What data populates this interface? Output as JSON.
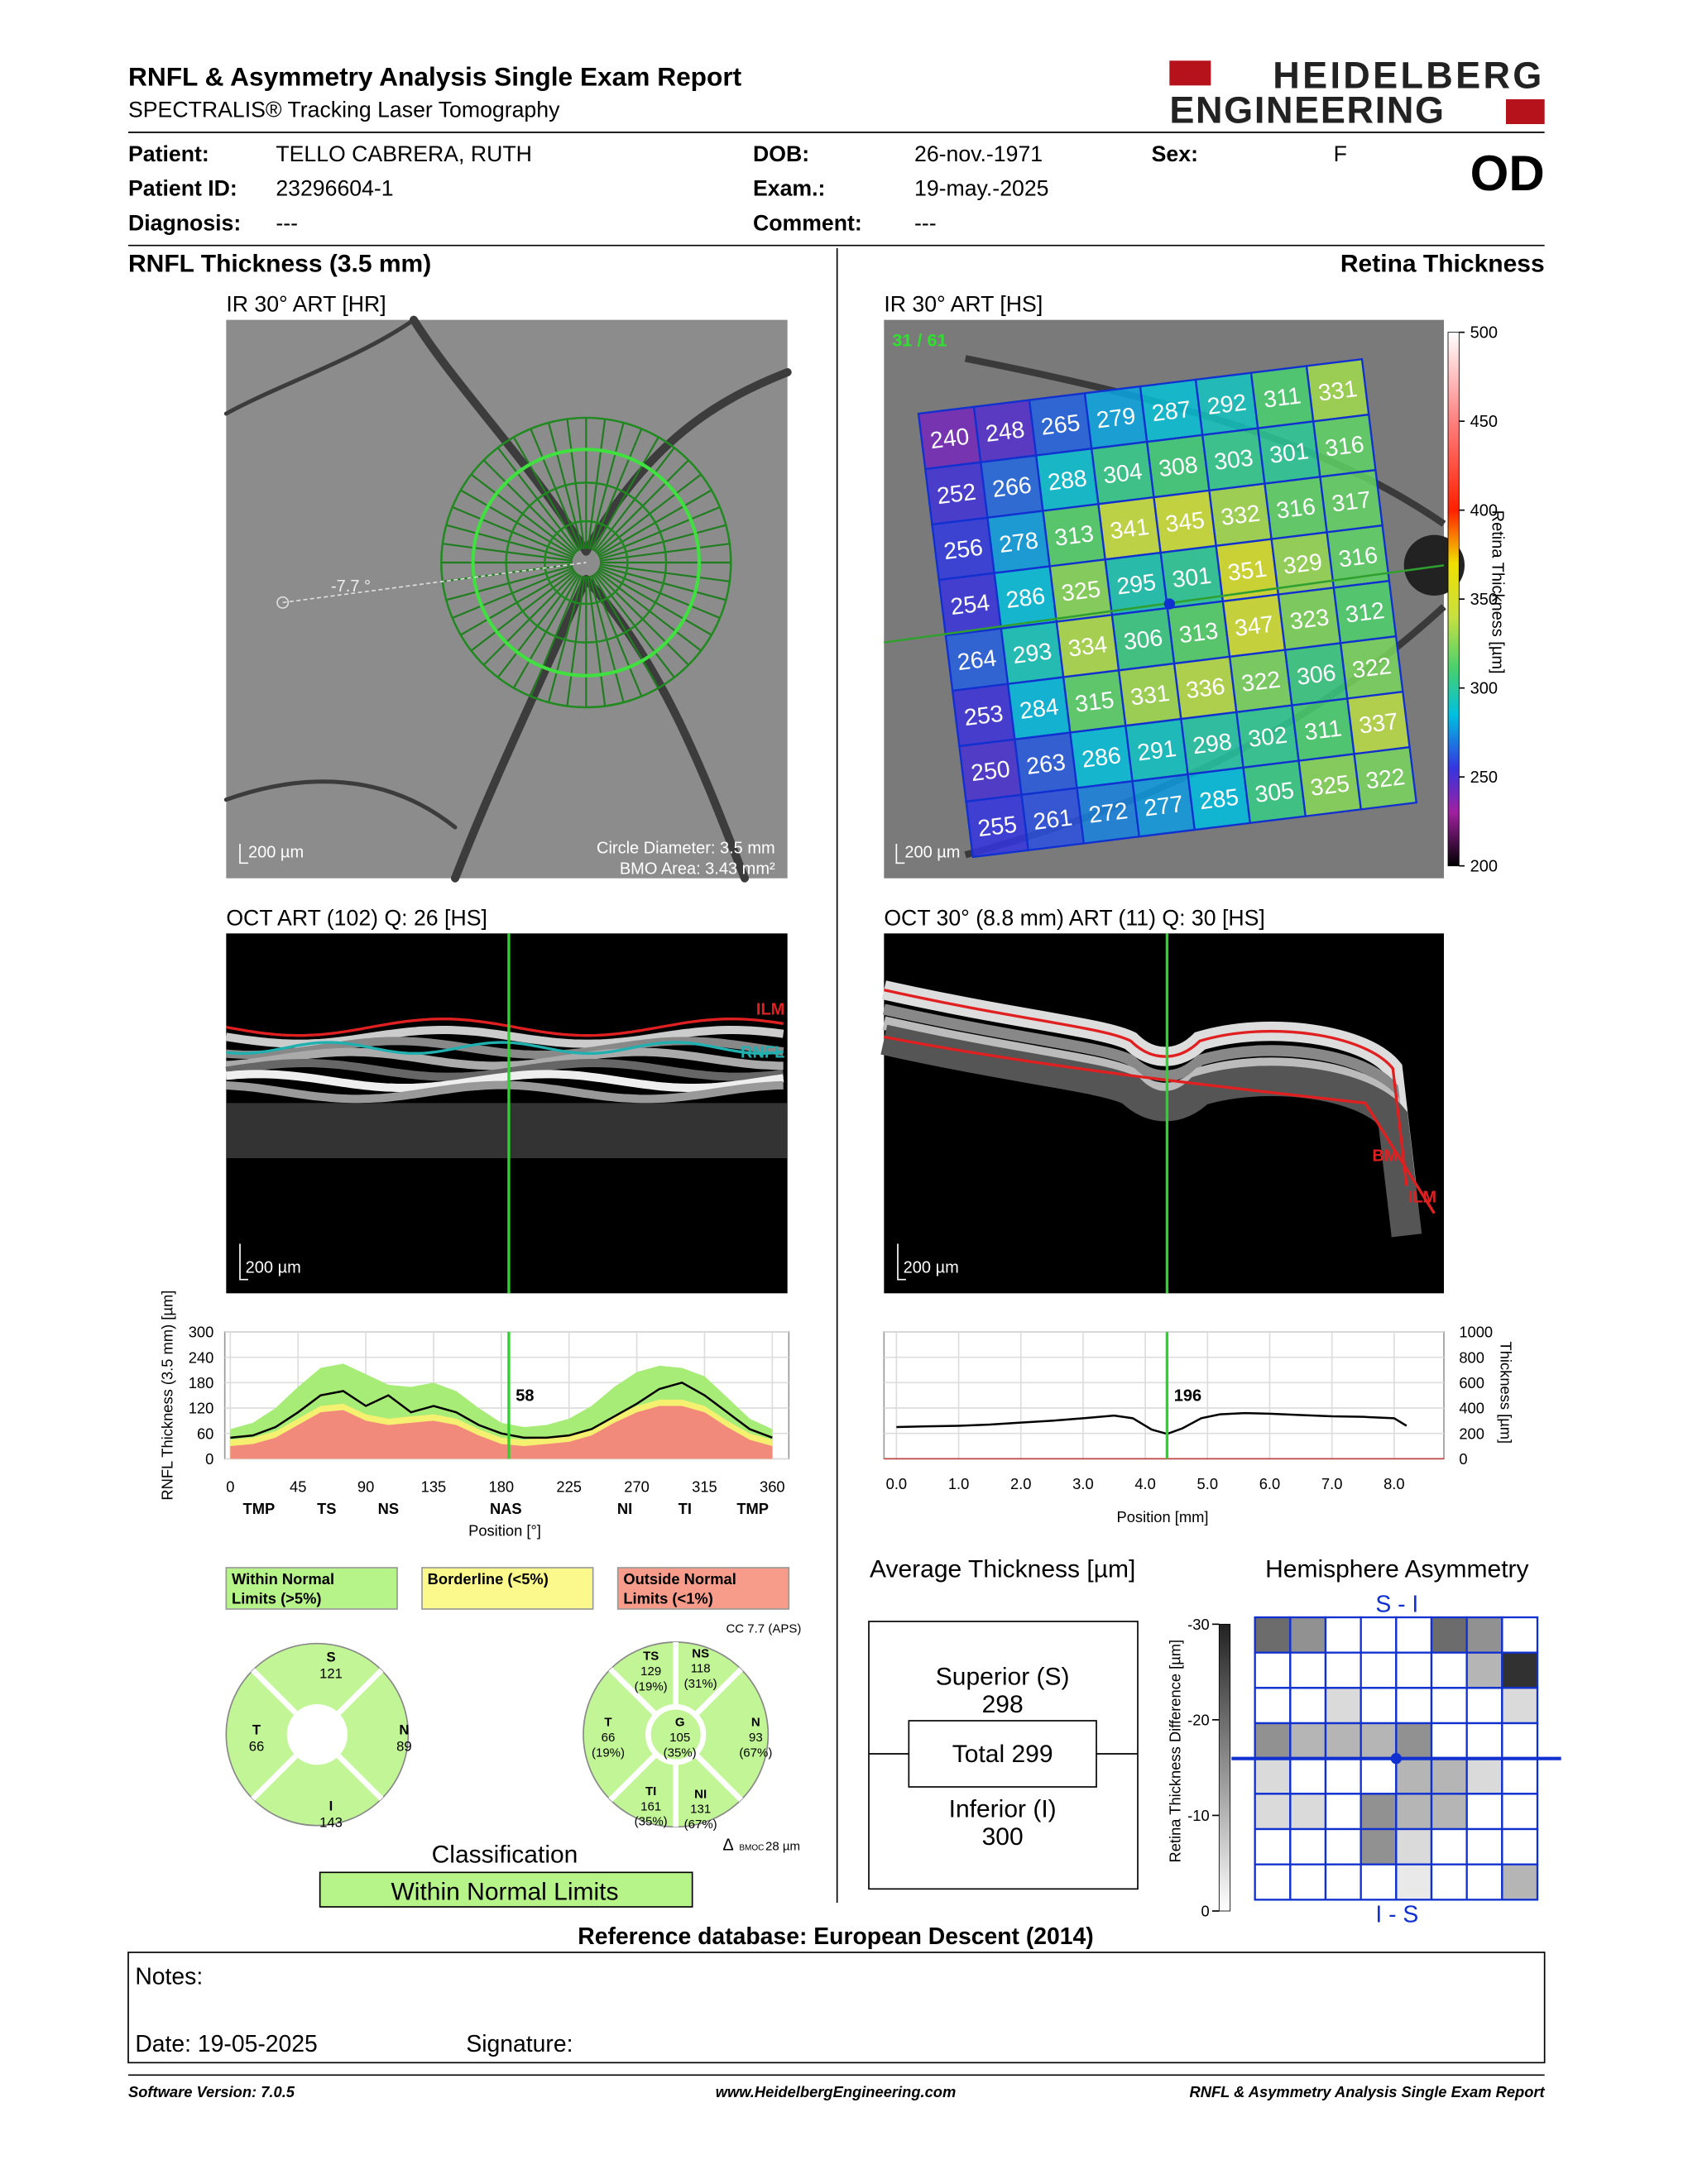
{
  "header": {
    "title": "RNFL & Asymmetry Analysis Single Exam Report",
    "subtitle": "SPECTRALIS® Tracking Laser Tomography",
    "logo": [
      "HEIDELBERG",
      "ENGINEERING"
    ]
  },
  "patient": [
    {
      "label": "Patient:",
      "value": "TELLO CABRERA, RUTH"
    },
    {
      "label": "Patient ID:",
      "value": "23296604-1"
    },
    {
      "label": "Diagnosis:",
      "value": "---"
    },
    {
      "label": "DOB:",
      "value": "26-nov.-1971"
    },
    {
      "label": "Exam.:",
      "value": "19-may.-2025"
    },
    {
      "label": "Comment:",
      "value": "---"
    },
    {
      "label": "Sex:",
      "value": "F"
    }
  ],
  "eye": "OD",
  "rnfl": {
    "section_title": "RNFL Thickness (3.5 mm)",
    "fundus": {
      "label": "IR 30° ART [HR]",
      "angle": "-7.7 °",
      "scale": "200 µm",
      "circle_diameter": "Circle Diameter: 3.5 mm",
      "bmo_area": "BMO Area: 3.43 mm²"
    },
    "oct": {
      "label": "OCT ART (102) Q: 26 [HS]",
      "scale": "200 µm",
      "layers": [
        "ILM",
        "RNFL"
      ]
    },
    "chart": {
      "type": "line",
      "y_label": "RNFL Thickness (3.5 mm) [µm]",
      "x_label": "Position [°]",
      "xlim": [
        0,
        360
      ],
      "xticks": [
        0,
        45,
        90,
        135,
        180,
        225,
        270,
        315,
        360
      ],
      "ylim": [
        0,
        300
      ],
      "yticks": [
        0,
        60,
        120,
        180,
        240,
        300
      ],
      "grid": true,
      "regions": [
        {
          "label": "TMP",
          "at": 19
        },
        {
          "label": "TS",
          "at": 64
        },
        {
          "label": "NS",
          "at": 105
        },
        {
          "label": "NAS",
          "at": 183
        },
        {
          "label": "NI",
          "at": 262
        },
        {
          "label": "TI",
          "at": 302
        },
        {
          "label": "TMP",
          "at": 347
        }
      ],
      "x": [
        0,
        15,
        30,
        45,
        60,
        75,
        90,
        105,
        120,
        135,
        150,
        165,
        180,
        195,
        210,
        225,
        240,
        255,
        270,
        285,
        300,
        315,
        330,
        345,
        360
      ],
      "bands": [
        {
          "color": "#a8ec78",
          "values": [
            70,
            85,
            120,
            170,
            215,
            225,
            200,
            175,
            170,
            180,
            160,
            120,
            85,
            75,
            80,
            95,
            125,
            170,
            205,
            220,
            215,
            195,
            145,
            95,
            70
          ]
        },
        {
          "color": "#f6f070",
          "values": [
            45,
            50,
            65,
            95,
            125,
            130,
            105,
            95,
            100,
            105,
            95,
            70,
            50,
            45,
            50,
            55,
            70,
            100,
            125,
            140,
            140,
            125,
            90,
            60,
            45
          ]
        },
        {
          "color": "#f28a7c",
          "values": [
            30,
            35,
            50,
            80,
            110,
            115,
            90,
            80,
            85,
            90,
            80,
            55,
            35,
            30,
            35,
            40,
            55,
            85,
            110,
            125,
            125,
            110,
            75,
            45,
            30
          ]
        }
      ],
      "measured": {
        "color": "#000000",
        "values": [
          50,
          55,
          75,
          110,
          150,
          160,
          125,
          150,
          110,
          125,
          110,
          80,
          60,
          50,
          50,
          55,
          70,
          100,
          130,
          165,
          180,
          150,
          110,
          70,
          50
        ]
      },
      "cursor": {
        "x": 185,
        "value": 58
      }
    },
    "legend": [
      {
        "lines": [
          "Within Normal",
          "Limits (>5%)"
        ],
        "color": "#b6f48a"
      },
      {
        "lines": [
          "Borderline (<5%)"
        ],
        "color": "#fbf98b"
      },
      {
        "lines": [
          "Outside Normal",
          "Limits (<1%)"
        ],
        "color": "#f79b8b"
      }
    ],
    "sectors": {
      "cc": "CC 7.7 (APS)",
      "bmoc": [
        "Δ",
        "BMOC",
        "28 µm"
      ],
      "global": [
        {
          "label": "S",
          "value": 121
        },
        {
          "label": "T",
          "value": 66
        },
        {
          "label": "N",
          "value": 89
        },
        {
          "label": "I",
          "value": 143
        }
      ],
      "detail": [
        {
          "label": "TS",
          "value": 129,
          "percent": "(19%)"
        },
        {
          "label": "NS",
          "value": 118,
          "percent": "(31%)"
        },
        {
          "label": "T",
          "value": 66,
          "percent": "(19%)"
        },
        {
          "label": "G",
          "value": 105,
          "percent": "(35%)"
        },
        {
          "label": "N",
          "value": 93,
          "percent": "(67%)"
        },
        {
          "label": "TI",
          "value": 161,
          "percent": "(35%)"
        },
        {
          "label": "NI",
          "value": 131,
          "percent": "(67%)"
        }
      ]
    },
    "classification": {
      "title": "Classification",
      "result": "Within Normal Limits"
    }
  },
  "retina": {
    "section_title": "Retina Thickness",
    "fundus": {
      "label": "IR 30° ART [HS]",
      "scan": "31 / 61",
      "scale": "200 µm",
      "grid": [
        [
          240,
          248,
          265,
          279,
          287,
          292,
          311,
          331
        ],
        [
          252,
          266,
          288,
          304,
          308,
          303,
          301,
          316
        ],
        [
          256,
          278,
          313,
          341,
          345,
          332,
          316,
          317
        ],
        [
          254,
          286,
          325,
          295,
          301,
          351,
          329,
          316
        ],
        [
          264,
          293,
          334,
          306,
          313,
          347,
          323,
          312
        ],
        [
          253,
          284,
          315,
          331,
          336,
          322,
          306,
          322
        ],
        [
          250,
          263,
          286,
          291,
          298,
          302,
          311,
          337
        ],
        [
          255,
          261,
          272,
          277,
          285,
          305,
          325,
          322
        ]
      ],
      "colorbar": {
        "label": "Retina Thickness [µm]",
        "lim": [
          200,
          500
        ],
        "ticks": [
          200,
          250,
          300,
          350,
          400,
          450,
          500
        ]
      }
    },
    "oct": {
      "label": "OCT 30° (8.8 mm) ART (11) Q: 30 [HS]",
      "scale": "200 µm",
      "layers": [
        "BM",
        "ILM"
      ]
    },
    "chart": {
      "type": "line",
      "x_label": "Position [mm]",
      "y_label": "Thickness [µm]",
      "xlim": [
        -0.2,
        8.8
      ],
      "xticks": [
        {
          "value": 0,
          "label": "0.0"
        },
        {
          "value": 1,
          "label": "1.0"
        },
        {
          "value": 2,
          "label": "2.0"
        },
        {
          "value": 3,
          "label": "3.0"
        },
        {
          "value": 4,
          "label": "4.0"
        },
        {
          "value": 5,
          "label": "5.0"
        },
        {
          "value": 6,
          "label": "6.0"
        },
        {
          "value": 7,
          "label": "7.0"
        },
        {
          "value": 8,
          "label": "8.0"
        }
      ],
      "ylim": [
        0,
        1000
      ],
      "yticks": [
        0,
        200,
        400,
        600,
        800,
        1000
      ],
      "grid": true,
      "color": "#000000",
      "x": [
        0,
        0.5,
        1,
        1.5,
        2,
        2.5,
        3,
        3.5,
        3.8,
        4.1,
        4.35,
        4.6,
        4.9,
        5.2,
        5.6,
        6,
        6.5,
        7,
        7.5,
        8,
        8.2
      ],
      "values": [
        250,
        255,
        260,
        270,
        285,
        300,
        320,
        340,
        320,
        230,
        196,
        240,
        320,
        350,
        360,
        355,
        345,
        335,
        330,
        320,
        260
      ],
      "cursor": {
        "x": 4.35,
        "value": 196
      }
    },
    "average": {
      "title": "Average Thickness [µm]",
      "superior_label": "Superior (S)",
      "superior": 298,
      "total_label": "Total",
      "total": 299,
      "inferior_label": "Inferior (I)",
      "inferior": 300
    },
    "asymmetry": {
      "title": "Hemisphere Asymmetry",
      "top": "S - I",
      "bottom": "I - S",
      "colorbar": {
        "label": "Retina Thickness Difference [µm]",
        "lim": [
          0,
          -30
        ],
        "ticks": [
          0,
          -10,
          -20,
          -30
        ]
      },
      "grid": [
        [
          -20,
          -15,
          0,
          0,
          0,
          -20,
          -15,
          0
        ],
        [
          0,
          0,
          0,
          0,
          0,
          0,
          -10,
          -28
        ],
        [
          0,
          0,
          -5,
          0,
          0,
          0,
          0,
          -5
        ],
        [
          -15,
          -10,
          -10,
          -10,
          -15,
          0,
          0,
          0
        ],
        [
          -5,
          0,
          0,
          0,
          -10,
          -10,
          -5,
          0
        ],
        [
          -5,
          -5,
          0,
          -15,
          -10,
          -10,
          0,
          0
        ],
        [
          0,
          0,
          0,
          -15,
          -5,
          0,
          0,
          0
        ],
        [
          0,
          0,
          0,
          0,
          -3,
          0,
          0,
          -10
        ]
      ]
    }
  },
  "reference": "Reference database: European Descent (2014)",
  "notes": {
    "label": "Notes:",
    "date": "Date: 19-05-2025",
    "signature": "Signature:"
  },
  "footer": [
    "Software Version: 7.0.5",
    "www.HeidelbergEngineering.com",
    "RNFL & Asymmetry Analysis Single Exam Report"
  ]
}
